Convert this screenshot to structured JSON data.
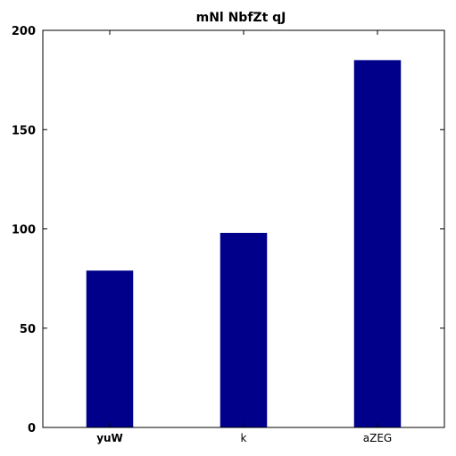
{
  "chart_data": {
    "type": "bar",
    "title": "mNl NbfZt  qJ",
    "categories": [
      "yuW",
      "k",
      "aZEG"
    ],
    "values": [
      79,
      98,
      185
    ],
    "bold_categories": [
      "yuW"
    ],
    "bar_color": "#00008b",
    "xlabel": "",
    "ylabel": "",
    "ylim": [
      0,
      200
    ],
    "yticks": [
      0,
      50,
      100,
      150,
      200
    ],
    "grid": false,
    "legend": "none"
  }
}
